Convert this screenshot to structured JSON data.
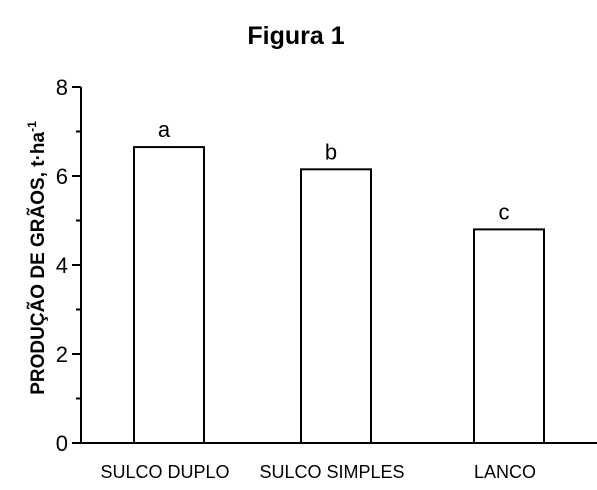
{
  "chart_data": {
    "type": "bar",
    "title": "Figura 1",
    "xlabel": "",
    "ylabel_main": "PRODUÇÃO DE GRÃOS, t·ha",
    "ylabel_sup": "-1",
    "categories": [
      "SULCO DUPLO",
      "SULCO SIMPLES",
      "LANCO"
    ],
    "values": [
      6.65,
      6.15,
      4.8
    ],
    "bar_labels": [
      "a",
      "b",
      "c"
    ],
    "ylim": [
      0,
      8
    ],
    "yticks": [
      0,
      2,
      4,
      6,
      8
    ],
    "yticks_minor": [
      1,
      3,
      5,
      7
    ],
    "grid": false,
    "legend": "none",
    "colors": {
      "bar_fill": "#ffffff",
      "bar_stroke": "#000000",
      "axis": "#000000"
    }
  }
}
